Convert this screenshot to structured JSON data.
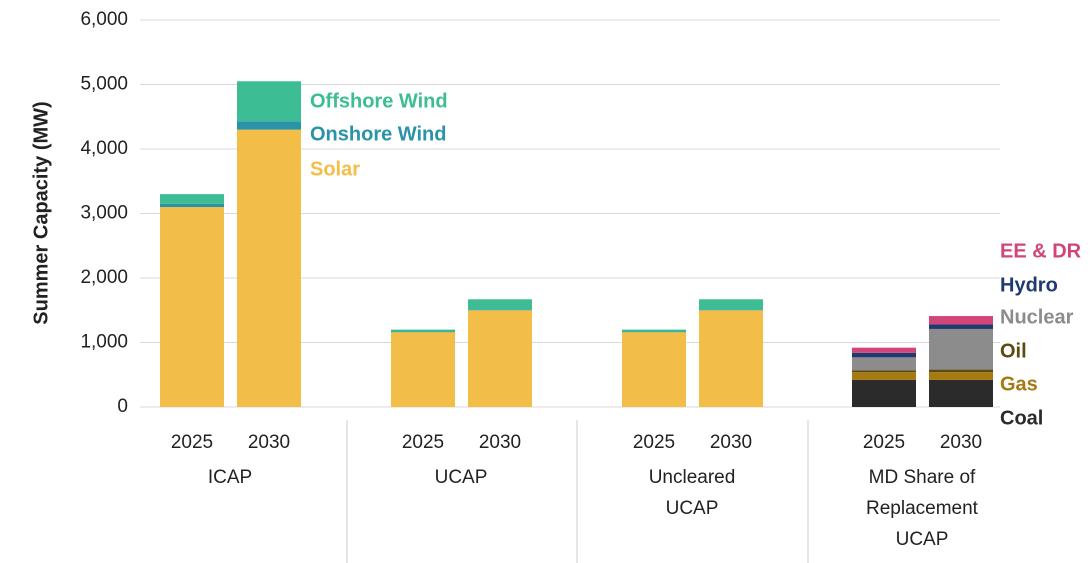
{
  "chart_data": {
    "type": "stacked_bar",
    "ylabel": "Summer Capacity (MW)",
    "categories": [
      "2025",
      "2030",
      "2025",
      "2030",
      "2025",
      "2030",
      "2025",
      "2030"
    ],
    "groups": [
      [
        "ICAP"
      ],
      [
        "UCAP"
      ],
      [
        "Uncleared",
        "UCAP"
      ],
      [
        "MD Share of",
        "Replacement",
        "UCAP"
      ]
    ],
    "series": [
      {
        "name": "Solar",
        "color": "#F3BE48",
        "values": [
          3100,
          4300,
          1160,
          1500,
          1160,
          1500,
          0,
          0
        ]
      },
      {
        "name": "Onshore Wind",
        "color": "#2A93A8",
        "values": [
          50,
          130,
          10,
          10,
          10,
          10,
          0,
          0
        ]
      },
      {
        "name": "Offshore Wind",
        "color": "#3CBD94",
        "values": [
          150,
          620,
          30,
          160,
          30,
          160,
          0,
          0
        ]
      },
      {
        "name": "Coal",
        "color": "#2B2B2B",
        "values": [
          0,
          0,
          0,
          0,
          0,
          0,
          420,
          420
        ]
      },
      {
        "name": "Gas",
        "color": "#A57A12",
        "values": [
          0,
          0,
          0,
          0,
          0,
          0,
          120,
          120
        ]
      },
      {
        "name": "Oil",
        "color": "#5E4A10",
        "values": [
          0,
          0,
          0,
          0,
          0,
          0,
          30,
          40
        ]
      },
      {
        "name": "Nuclear",
        "color": "#8C8C8C",
        "values": [
          0,
          0,
          0,
          0,
          0,
          0,
          200,
          630
        ]
      },
      {
        "name": "Hydro",
        "color": "#1F3A6E",
        "values": [
          0,
          0,
          0,
          0,
          0,
          0,
          70,
          70
        ]
      },
      {
        "name": "EE & DR",
        "color": "#D2457A",
        "values": [
          0,
          0,
          0,
          0,
          0,
          0,
          80,
          130
        ]
      }
    ],
    "ylim": [
      0,
      6000
    ],
    "yticks": [
      0,
      {
        "value": 1000,
        "label": "1,000"
      },
      {
        "value": 2000,
        "label": "2,000"
      },
      {
        "value": 3000,
        "label": "3,000"
      },
      {
        "value": 4000,
        "label": "4,000"
      },
      {
        "value": 5000,
        "label": "5,000"
      },
      {
        "value": 6000,
        "label": "6,000"
      }
    ],
    "grid": true
  }
}
